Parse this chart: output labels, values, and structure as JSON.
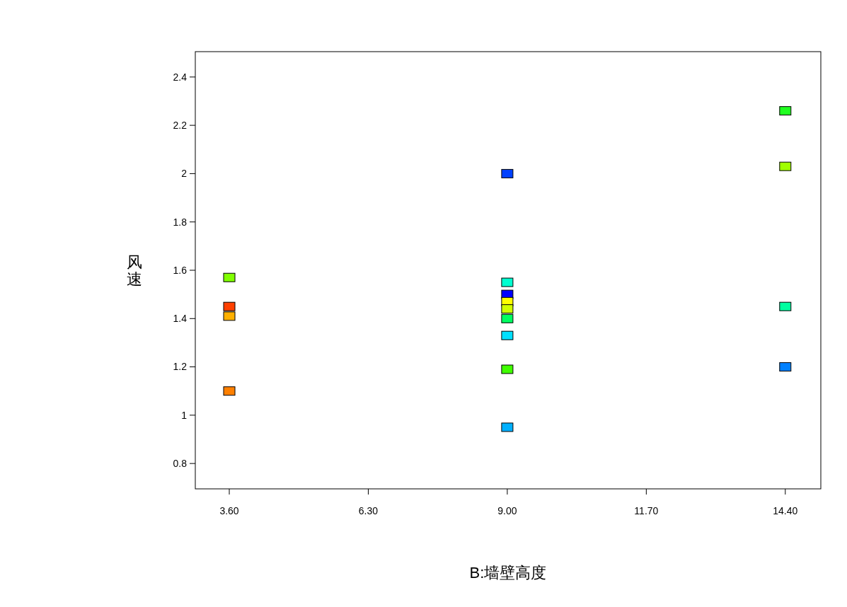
{
  "chart_data": {
    "type": "scatter",
    "xlabel": "B:墙壁高度",
    "ylabel": "风速",
    "x": [
      3.6,
      3.6,
      3.6,
      3.6,
      9,
      9,
      9,
      9,
      9,
      9,
      9,
      9,
      9,
      14.4,
      14.4,
      14.4,
      14.4
    ],
    "values": [
      1.57,
      1.45,
      1.41,
      1.1,
      2.0,
      1.55,
      1.5,
      1.47,
      1.44,
      1.4,
      1.33,
      1.19,
      0.95,
      2.26,
      2.03,
      1.45,
      1.2
    ],
    "colors": [
      "#80ff00",
      "#ff4000",
      "#ffb000",
      "#ff8000",
      "#0040ff",
      "#00ffd0",
      "#0000ff",
      "#ffff00",
      "#d0ff00",
      "#00ff60",
      "#00e0ff",
      "#40ff00",
      "#00b0ff",
      "#20ff20",
      "#a0ff00",
      "#00ffa0",
      "#0080ff"
    ],
    "xlim": [
      2.94,
      15.09
    ],
    "ylim": [
      0.695,
      2.505
    ],
    "xticks": [
      {
        "value": 3.6,
        "label": "3.60"
      },
      {
        "value": 6.3,
        "label": "6.30"
      },
      {
        "value": 9,
        "label": "9.00"
      },
      {
        "value": 11.7,
        "label": "11.70"
      },
      {
        "value": 14.4,
        "label": "14.40"
      }
    ],
    "yticks": [
      0.8,
      1,
      1.2,
      1.4,
      1.6,
      1.8,
      2,
      2.2,
      2.4
    ],
    "marker": "square",
    "grid": false
  }
}
